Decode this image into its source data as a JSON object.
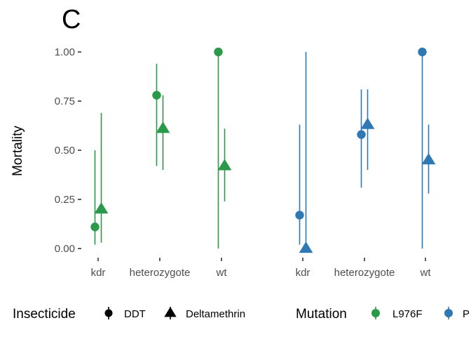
{
  "chart_data": {
    "type": "scatter",
    "panel_tag": "C",
    "ylabel": "Mortality",
    "ylim": [
      0,
      1
    ],
    "yticks": [
      "0.00",
      "0.25",
      "0.50",
      "0.75",
      "1.00"
    ],
    "ytick_values": [
      0,
      0.25,
      0.5,
      0.75,
      1.0
    ],
    "grid": false,
    "groups": [
      {
        "mutation": "L976F",
        "color": "#2a9a4a",
        "categories": [
          "kdr",
          "heterozygote",
          "wt"
        ],
        "series": [
          {
            "insecticide": "DDT",
            "shape": "circle",
            "values": [
              0.11,
              0.78,
              1.0
            ],
            "lower": [
              0.02,
              0.42,
              0.0
            ],
            "upper": [
              0.5,
              0.94,
              1.0
            ]
          },
          {
            "insecticide": "Deltamethrin",
            "shape": "triangle",
            "values": [
              0.2,
              0.61,
              0.42
            ],
            "lower": [
              0.03,
              0.4,
              0.24
            ],
            "upper": [
              0.69,
              0.78,
              0.61
            ]
          }
        ]
      },
      {
        "mutation": "P",
        "color": "#2e78b4",
        "categories": [
          "kdr",
          "heterozygote",
          "wt"
        ],
        "series": [
          {
            "insecticide": "DDT",
            "shape": "circle",
            "values": [
              0.17,
              0.58,
              1.0
            ],
            "lower": [
              0.02,
              0.31,
              0.0
            ],
            "upper": [
              0.63,
              0.81,
              1.0
            ]
          },
          {
            "insecticide": "Deltamethrin",
            "shape": "triangle",
            "values": [
              0.0,
              0.63,
              0.45
            ],
            "lower": [
              0.0,
              0.4,
              0.28
            ],
            "upper": [
              1.0,
              0.81,
              0.63
            ]
          }
        ]
      }
    ],
    "legend": {
      "position": "bottom",
      "insecticide_title": "Insecticide",
      "insecticide_items": [
        {
          "label": "DDT",
          "shape": "circle"
        },
        {
          "label": "Deltamethrin",
          "shape": "triangle"
        }
      ],
      "mutation_title": "Mutation",
      "mutation_items": [
        {
          "label": "L976F",
          "color": "#2a9a4a"
        },
        {
          "label": "P",
          "color": "#2e78b4"
        }
      ]
    }
  }
}
